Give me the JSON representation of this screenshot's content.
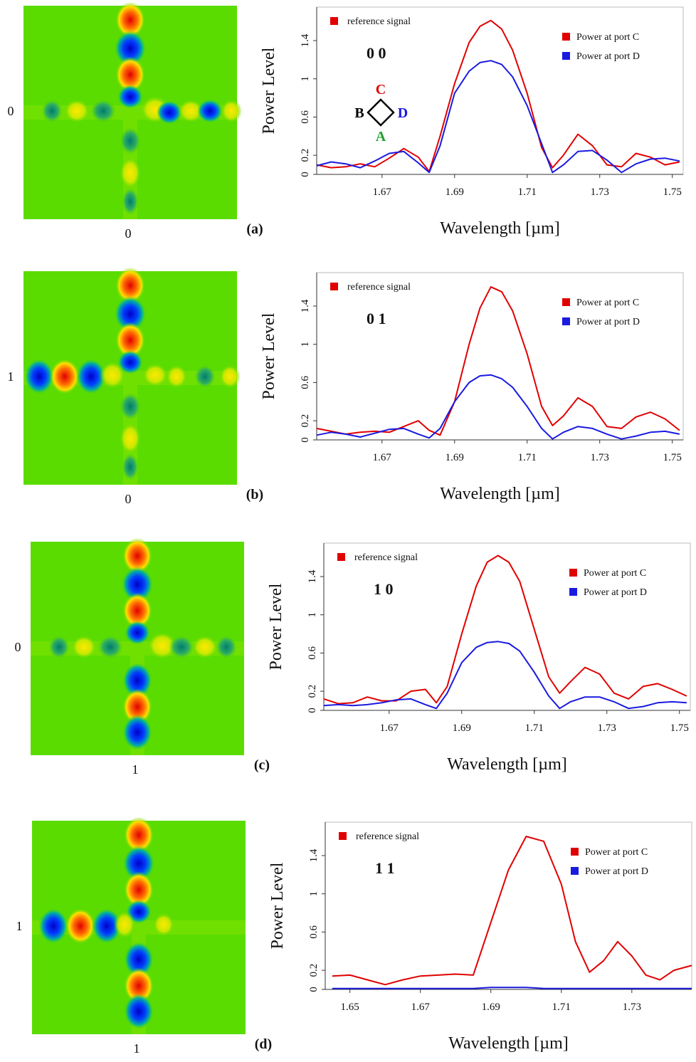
{
  "chart_data": [
    {
      "type": "line",
      "panel_label": "(a)",
      "field_left_label": "0",
      "field_bottom_label": "0",
      "code": "0 0",
      "legend_note": {
        "text": "reference signal",
        "color": "#e00000"
      },
      "port_labels": [
        {
          "text": "C",
          "color": "#e00000"
        },
        {
          "text": "B",
          "color": "#000000"
        },
        {
          "text": "D",
          "color": "#1a1ae0"
        },
        {
          "text": "A",
          "color": "#22a030"
        }
      ],
      "xlabel": "Wavelength [µm]",
      "ylabel": "Power Level",
      "x": [
        1.652,
        1.656,
        1.66,
        1.664,
        1.668,
        1.672,
        1.676,
        1.68,
        1.683,
        1.686,
        1.69,
        1.694,
        1.697,
        1.7,
        1.703,
        1.706,
        1.71,
        1.714,
        1.717,
        1.72,
        1.724,
        1.728,
        1.732,
        1.736,
        1.74,
        1.744,
        1.748,
        1.752
      ],
      "series": [
        {
          "name": "Power at port C",
          "color": "#e00000",
          "values": [
            0.1,
            0.07,
            0.08,
            0.11,
            0.08,
            0.17,
            0.27,
            0.18,
            0.03,
            0.4,
            0.95,
            1.38,
            1.55,
            1.61,
            1.52,
            1.3,
            0.85,
            0.28,
            0.07,
            0.2,
            0.42,
            0.3,
            0.1,
            0.08,
            0.22,
            0.18,
            0.1,
            0.13
          ]
        },
        {
          "name": "Power at port D",
          "color": "#1a1ae0",
          "values": [
            0.09,
            0.13,
            0.11,
            0.07,
            0.14,
            0.22,
            0.24,
            0.12,
            0.02,
            0.3,
            0.85,
            1.08,
            1.17,
            1.19,
            1.15,
            1.02,
            0.72,
            0.32,
            0.02,
            0.1,
            0.24,
            0.25,
            0.15,
            0.02,
            0.11,
            0.16,
            0.17,
            0.14
          ]
        }
      ],
      "xlim": [
        1.652,
        1.753
      ],
      "ylim": [
        0,
        1.75
      ],
      "xticks": [
        1.67,
        1.69,
        1.71,
        1.73,
        1.75
      ],
      "yticks": [
        0,
        0.2,
        0.6,
        1,
        1.4
      ]
    },
    {
      "type": "line",
      "panel_label": "(b)",
      "field_left_label": "1",
      "field_bottom_label": "0",
      "code": "0 1",
      "legend_note": {
        "text": "reference signal",
        "color": "#e00000"
      },
      "xlabel": "Wavelength [µm]",
      "ylabel": "Power Level",
      "x": [
        1.652,
        1.656,
        1.66,
        1.664,
        1.668,
        1.672,
        1.676,
        1.68,
        1.683,
        1.686,
        1.69,
        1.694,
        1.697,
        1.7,
        1.703,
        1.706,
        1.71,
        1.714,
        1.717,
        1.72,
        1.724,
        1.728,
        1.732,
        1.736,
        1.74,
        1.744,
        1.748,
        1.752
      ],
      "series": [
        {
          "name": "Power at port C",
          "color": "#e00000",
          "values": [
            0.12,
            0.09,
            0.06,
            0.08,
            0.09,
            0.08,
            0.14,
            0.2,
            0.1,
            0.05,
            0.4,
            1.0,
            1.38,
            1.6,
            1.55,
            1.35,
            0.9,
            0.35,
            0.15,
            0.25,
            0.44,
            0.35,
            0.14,
            0.12,
            0.24,
            0.29,
            0.22,
            0.1
          ]
        },
        {
          "name": "Power at port D",
          "color": "#1a1ae0",
          "values": [
            0.05,
            0.08,
            0.06,
            0.03,
            0.07,
            0.11,
            0.12,
            0.06,
            0.02,
            0.12,
            0.4,
            0.6,
            0.67,
            0.68,
            0.64,
            0.55,
            0.35,
            0.12,
            0.01,
            0.08,
            0.14,
            0.12,
            0.06,
            0.01,
            0.04,
            0.08,
            0.09,
            0.06
          ]
        }
      ],
      "xlim": [
        1.652,
        1.753
      ],
      "ylim": [
        0,
        1.75
      ],
      "xticks": [
        1.67,
        1.69,
        1.71,
        1.73,
        1.75
      ],
      "yticks": [
        0,
        0.2,
        0.6,
        1,
        1.4
      ]
    },
    {
      "type": "line",
      "panel_label": "(c)",
      "field_left_label": "0",
      "field_bottom_label": "1",
      "code": "1 0",
      "legend_note": {
        "text": "reference signal",
        "color": "#e00000"
      },
      "xlabel": "Wavelength [µm]",
      "ylabel": "Power Level",
      "x": [
        1.652,
        1.656,
        1.66,
        1.664,
        1.668,
        1.672,
        1.676,
        1.68,
        1.683,
        1.686,
        1.69,
        1.694,
        1.697,
        1.7,
        1.703,
        1.706,
        1.71,
        1.714,
        1.717,
        1.72,
        1.724,
        1.728,
        1.732,
        1.736,
        1.74,
        1.744,
        1.748,
        1.752
      ],
      "series": [
        {
          "name": "Power at port C",
          "color": "#e00000",
          "values": [
            0.12,
            0.07,
            0.08,
            0.14,
            0.1,
            0.1,
            0.2,
            0.22,
            0.08,
            0.25,
            0.8,
            1.3,
            1.55,
            1.62,
            1.55,
            1.35,
            0.85,
            0.35,
            0.18,
            0.3,
            0.45,
            0.38,
            0.18,
            0.12,
            0.25,
            0.28,
            0.22,
            0.15
          ]
        },
        {
          "name": "Power at port D",
          "color": "#1a1ae0",
          "values": [
            0.05,
            0.06,
            0.05,
            0.06,
            0.08,
            0.11,
            0.12,
            0.06,
            0.02,
            0.18,
            0.5,
            0.66,
            0.71,
            0.72,
            0.7,
            0.62,
            0.4,
            0.15,
            0.02,
            0.09,
            0.14,
            0.14,
            0.09,
            0.02,
            0.04,
            0.08,
            0.09,
            0.08
          ]
        }
      ],
      "xlim": [
        1.652,
        1.753
      ],
      "ylim": [
        0,
        1.75
      ],
      "xticks": [
        1.67,
        1.69,
        1.71,
        1.73,
        1.75
      ],
      "yticks": [
        0,
        0.2,
        0.6,
        1,
        1.4
      ]
    },
    {
      "type": "line",
      "panel_label": "(d)",
      "field_left_label": "1",
      "field_bottom_label": "1",
      "code": "1 1",
      "legend_note": {
        "text": "reference signal",
        "color": "#e00000"
      },
      "xlabel": "Wavelength [µm]",
      "ylabel": "Power Level",
      "x": [
        1.645,
        1.65,
        1.655,
        1.66,
        1.665,
        1.67,
        1.675,
        1.68,
        1.685,
        1.69,
        1.695,
        1.7,
        1.705,
        1.71,
        1.714,
        1.718,
        1.722,
        1.726,
        1.73,
        1.734,
        1.738,
        1.742,
        1.747
      ],
      "series": [
        {
          "name": "Power at port C",
          "color": "#e00000",
          "values": [
            0.14,
            0.15,
            0.1,
            0.05,
            0.1,
            0.14,
            0.15,
            0.16,
            0.15,
            0.7,
            1.25,
            1.6,
            1.55,
            1.1,
            0.5,
            0.18,
            0.3,
            0.5,
            0.35,
            0.15,
            0.1,
            0.2,
            0.25
          ]
        },
        {
          "name": "Power at port D",
          "color": "#1a1ae0",
          "values": [
            0.01,
            0.01,
            0.01,
            0.01,
            0.01,
            0.01,
            0.01,
            0.01,
            0.01,
            0.02,
            0.02,
            0.02,
            0.01,
            0.01,
            0.01,
            0.01,
            0.01,
            0.01,
            0.01,
            0.01,
            0.01,
            0.01,
            0.01
          ]
        }
      ],
      "xlim": [
        1.643,
        1.747
      ],
      "ylim": [
        0,
        1.75
      ],
      "xticks": [
        1.65,
        1.67,
        1.69,
        1.71,
        1.73
      ],
      "yticks": [
        0,
        0.2,
        0.6,
        1,
        1.4
      ]
    }
  ]
}
